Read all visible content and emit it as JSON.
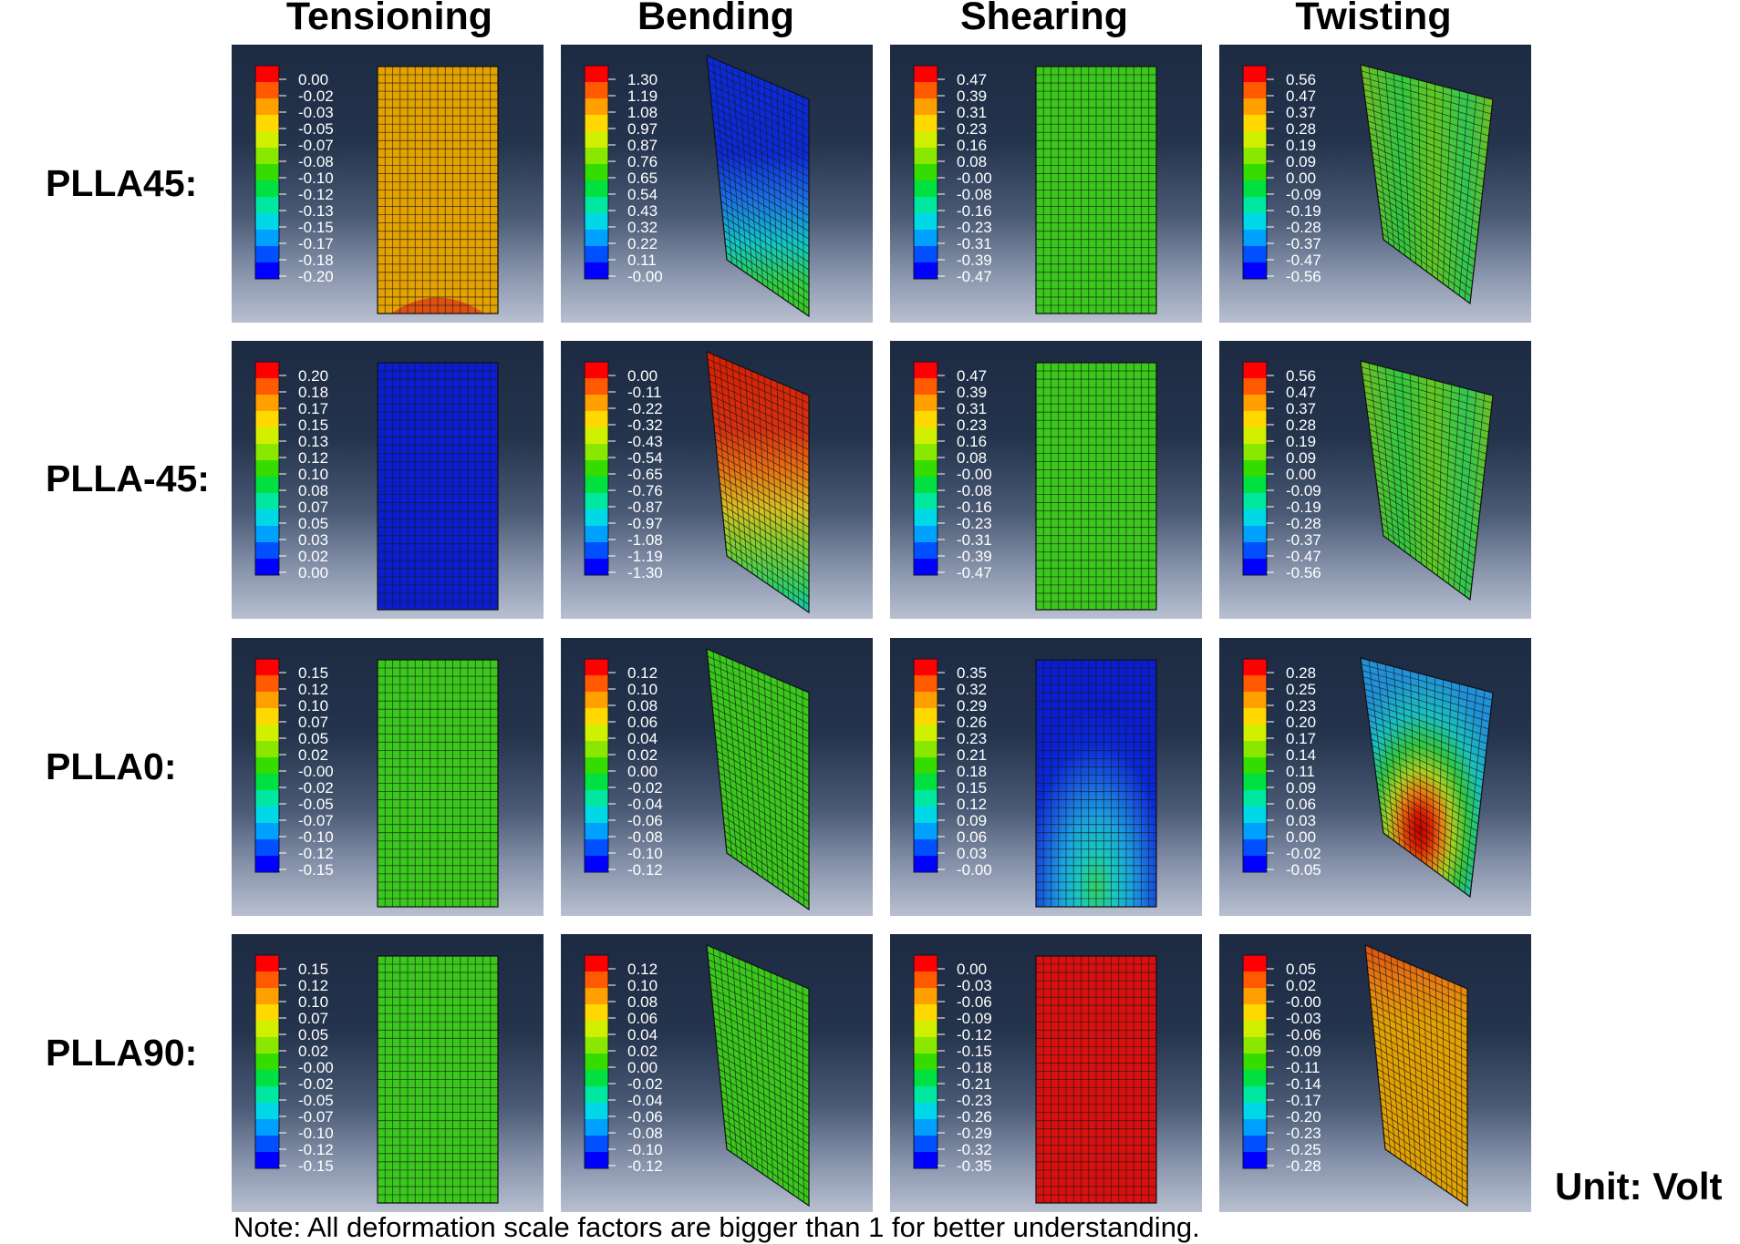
{
  "columns": [
    "Tensioning",
    "Bending",
    "Shearing",
    "Twisting"
  ],
  "rows": [
    "PLLA45:",
    "PLLA-45:",
    "PLLA0:",
    "PLLA90:"
  ],
  "note": "Note: All deformation scale factors are bigger than 1 for better understanding.",
  "unit": "Unit: Volt",
  "legend_colors": [
    "#ff0000",
    "#ff5a00",
    "#ffa000",
    "#ffd800",
    "#d0f000",
    "#8ae800",
    "#35dc00",
    "#00e040",
    "#00e8a0",
    "#00d8e8",
    "#00a0ff",
    "#0050ff",
    "#0000ff"
  ],
  "panels": [
    [
      {
        "ticks": [
          "0.00",
          "-0.02",
          "-0.03",
          "-0.05",
          "-0.07",
          "-0.08",
          "-0.10",
          "-0.12",
          "-0.13",
          "-0.15",
          "-0.17",
          "-0.18",
          "-0.20"
        ],
        "shape": "rect",
        "fill": "#e3a200",
        "accent": "tension-red-bottom"
      },
      {
        "ticks": [
          "1.30",
          "1.19",
          "1.08",
          "0.97",
          "0.87",
          "0.76",
          "0.65",
          "0.54",
          "0.43",
          "0.32",
          "0.22",
          "0.11",
          "-0.00"
        ],
        "shape": "bend",
        "fill": "#0a2ad8",
        "accent": "bend-blue-to-green"
      },
      {
        "ticks": [
          "0.47",
          "0.39",
          "0.31",
          "0.23",
          "0.16",
          "0.08",
          "-0.00",
          "-0.08",
          "-0.16",
          "-0.23",
          "-0.31",
          "-0.39",
          "-0.47"
        ],
        "shape": "rect",
        "fill": "#3ac81c",
        "accent": "none"
      },
      {
        "ticks": [
          "0.56",
          "0.47",
          "0.37",
          "0.28",
          "0.19",
          "0.09",
          "0.00",
          "-0.09",
          "-0.19",
          "-0.28",
          "-0.37",
          "-0.47",
          "-0.56"
        ],
        "shape": "twist",
        "fill": "#56c81e",
        "accent": "twist-green"
      }
    ],
    [
      {
        "ticks": [
          "0.20",
          "0.18",
          "0.17",
          "0.15",
          "0.13",
          "0.12",
          "0.10",
          "0.08",
          "0.07",
          "0.05",
          "0.03",
          "0.02",
          "0.00"
        ],
        "shape": "rect",
        "fill": "#0a1ed0",
        "accent": "none"
      },
      {
        "ticks": [
          "0.00",
          "-0.11",
          "-0.22",
          "-0.32",
          "-0.43",
          "-0.54",
          "-0.65",
          "-0.76",
          "-0.87",
          "-0.97",
          "-1.08",
          "-1.19",
          "-1.30"
        ],
        "shape": "bend",
        "fill": "#d81e00",
        "accent": "bend-red-to-green"
      },
      {
        "ticks": [
          "0.47",
          "0.39",
          "0.31",
          "0.23",
          "0.16",
          "0.08",
          "-0.00",
          "-0.08",
          "-0.16",
          "-0.23",
          "-0.31",
          "-0.39",
          "-0.47"
        ],
        "shape": "rect",
        "fill": "#3ac81c",
        "accent": "none"
      },
      {
        "ticks": [
          "0.56",
          "0.47",
          "0.37",
          "0.28",
          "0.19",
          "0.09",
          "0.00",
          "-0.09",
          "-0.19",
          "-0.28",
          "-0.37",
          "-0.47",
          "-0.56"
        ],
        "shape": "twist",
        "fill": "#56c81e",
        "accent": "twist-green"
      }
    ],
    [
      {
        "ticks": [
          "0.15",
          "0.12",
          "0.10",
          "0.07",
          "0.05",
          "0.02",
          "-0.00",
          "-0.02",
          "-0.05",
          "-0.07",
          "-0.10",
          "-0.12",
          "-0.15"
        ],
        "shape": "rect",
        "fill": "#3ac81c",
        "accent": "none"
      },
      {
        "ticks": [
          "0.12",
          "0.10",
          "0.08",
          "0.06",
          "0.04",
          "0.02",
          "0.00",
          "-0.02",
          "-0.04",
          "-0.06",
          "-0.08",
          "-0.10",
          "-0.12"
        ],
        "shape": "bend",
        "fill": "#3ac81c",
        "accent": "none"
      },
      {
        "ticks": [
          "0.35",
          "0.32",
          "0.29",
          "0.26",
          "0.23",
          "0.21",
          "0.18",
          "0.15",
          "0.12",
          "0.09",
          "0.06",
          "0.03",
          "-0.00"
        ],
        "shape": "rect",
        "fill": "#0a1ed0",
        "accent": "shear-arch"
      },
      {
        "ticks": [
          "0.28",
          "0.25",
          "0.23",
          "0.20",
          "0.17",
          "0.14",
          "0.11",
          "0.09",
          "0.06",
          "0.03",
          "0.00",
          "-0.02",
          "-0.05"
        ],
        "shape": "twist",
        "fill": "#22b0d8",
        "accent": "twist-hotspot"
      }
    ],
    [
      {
        "ticks": [
          "0.15",
          "0.12",
          "0.10",
          "0.07",
          "0.05",
          "0.02",
          "-0.00",
          "-0.02",
          "-0.05",
          "-0.07",
          "-0.10",
          "-0.12",
          "-0.15"
        ],
        "shape": "rect",
        "fill": "#3ac81c",
        "accent": "none"
      },
      {
        "ticks": [
          "0.12",
          "0.10",
          "0.08",
          "0.06",
          "0.04",
          "0.02",
          "0.00",
          "-0.02",
          "-0.04",
          "-0.06",
          "-0.08",
          "-0.10",
          "-0.12"
        ],
        "shape": "bend",
        "fill": "#3ac81c",
        "accent": "none"
      },
      {
        "ticks": [
          "0.00",
          "-0.03",
          "-0.06",
          "-0.09",
          "-0.12",
          "-0.15",
          "-0.18",
          "-0.21",
          "-0.23",
          "-0.26",
          "-0.29",
          "-0.32",
          "-0.35"
        ],
        "shape": "rect",
        "fill": "#d81010",
        "accent": "none"
      },
      {
        "ticks": [
          "0.05",
          "0.02",
          "-0.00",
          "-0.03",
          "-0.06",
          "-0.09",
          "-0.11",
          "-0.14",
          "-0.17",
          "-0.20",
          "-0.23",
          "-0.25",
          "-0.28"
        ],
        "shape": "bend",
        "fill": "#e3a200",
        "accent": "twist-orange-top"
      }
    ]
  ]
}
